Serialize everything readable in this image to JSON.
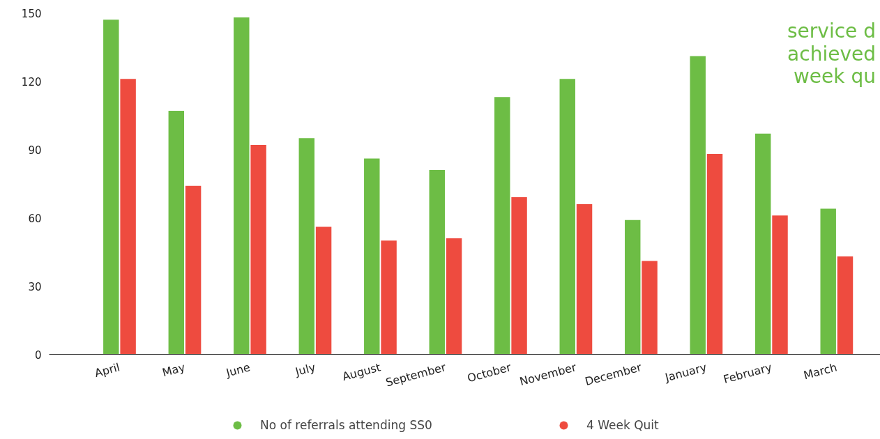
{
  "chart_data": {
    "type": "bar",
    "categories": [
      "April",
      "May",
      "June",
      "July",
      "August",
      "September",
      "October",
      "November",
      "December",
      "January",
      "February",
      "March"
    ],
    "series": [
      {
        "name": "No of referrals attending SS0",
        "color": "#6dbd45",
        "values": [
          147,
          107,
          148,
          95,
          86,
          81,
          113,
          121,
          59,
          131,
          97,
          64
        ]
      },
      {
        "name": "4 Week Quit",
        "color": "#ee4b3f",
        "values": [
          121,
          74,
          92,
          56,
          50,
          51,
          69,
          66,
          41,
          88,
          61,
          43
        ]
      }
    ],
    "ylim": [
      0,
      150
    ],
    "yticks": [
      0,
      30,
      60,
      90,
      120,
      150
    ],
    "grid": false,
    "legend": "bottom",
    "annotations": [
      "service d\nachieved\nweek qu"
    ]
  }
}
